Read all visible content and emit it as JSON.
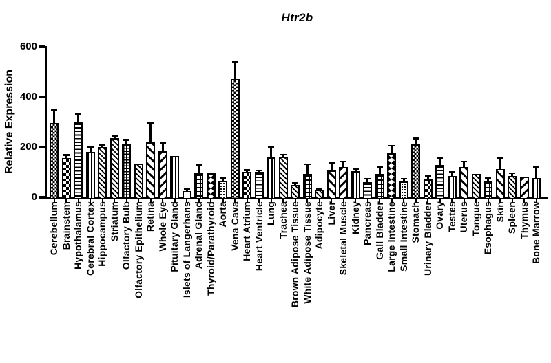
{
  "chart_data": {
    "type": "bar",
    "title": "Htr2b",
    "xlabel": "",
    "ylabel": "Relative Expression",
    "ylim": [
      0,
      600
    ],
    "yticks": [
      0,
      200,
      400,
      600
    ],
    "grid": false,
    "legend": "none",
    "foreground_color": "#000000",
    "background_color": "#ffffff",
    "error_bars": "SEM caps above bars",
    "categories": [
      "Cerebellum",
      "Brainstem",
      "Hypothalamus",
      "Cerebral Cortex",
      "Hippocampus",
      "Striatum",
      "Olfactory Bulb",
      "Olfactory Epithelium",
      "Retina",
      "Whole Eye",
      "Pituitary Gland",
      "Islets of Langerhans",
      "Adrenal Gland",
      "Thyroid/Parathyroid",
      "Aorta",
      "Vena Cava",
      "Heart Atrium",
      "Heart Ventricle",
      "Lung",
      "Trachea",
      "Brown Adipose Tissue",
      "White Adipose Tissue",
      "Adipocyte",
      "Liver",
      "Skeletal Muscle",
      "Kidney",
      "Pancreas",
      "Gall Bladder",
      "Large Intestine",
      "Small Intestine",
      "Stomach",
      "Urinary Bladder",
      "Ovary",
      "Testes",
      "Uterus",
      "Tongue",
      "Esophagus",
      "Skin",
      "Spleen",
      "Thymus",
      "Bone Marrow"
    ],
    "values": [
      295,
      155,
      298,
      180,
      200,
      235,
      215,
      133,
      220,
      183,
      164,
      25,
      95,
      95,
      67,
      470,
      102,
      101,
      158,
      162,
      50,
      93,
      30,
      106,
      121,
      105,
      60,
      94,
      175,
      62,
      210,
      70,
      130,
      84,
      120,
      92,
      64,
      112,
      84,
      82,
      78
    ],
    "errors": [
      55,
      13,
      33,
      18,
      8,
      7,
      13,
      0,
      75,
      33,
      0,
      8,
      35,
      0,
      10,
      70,
      6,
      6,
      40,
      8,
      6,
      38,
      5,
      32,
      22,
      6,
      14,
      25,
      30,
      12,
      25,
      15,
      25,
      16,
      22,
      0,
      12,
      45,
      12,
      0,
      42
    ],
    "patterns": [
      "checker-small",
      "checker-large",
      "hlines",
      "vlines",
      "diag-dn-thin",
      "diag-dn-thin",
      "grid-small",
      "diag-dn-thin",
      "diag-dn-wide",
      "diag-up-wide",
      "vlines",
      "plain",
      "grid-large",
      "diamonds",
      "dots",
      "checker-small",
      "checker-large",
      "hlines",
      "vlines",
      "diag-dn-thin",
      "diag-dn-thin",
      "grid-large",
      "diag-dn-thin",
      "diag-dn-wide",
      "diag-up-wide",
      "vlines",
      "hlines",
      "grid-large",
      "diamonds",
      "dots",
      "checker-small",
      "checker-large",
      "hlines",
      "vlines",
      "diag-dn-wide",
      "diag-dn-thin",
      "grid-large",
      "diag-dn-wide",
      "diag-dn-thin",
      "diag-up-wide",
      "vlines"
    ]
  }
}
